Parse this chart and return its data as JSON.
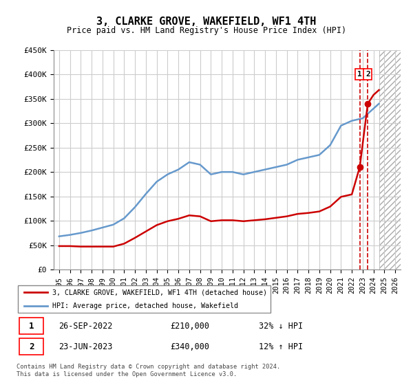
{
  "title": "3, CLARKE GROVE, WAKEFIELD, WF1 4TH",
  "subtitle": "Price paid vs. HM Land Registry's House Price Index (HPI)",
  "ytick_values": [
    0,
    50000,
    100000,
    150000,
    200000,
    250000,
    300000,
    350000,
    400000,
    450000
  ],
  "ylim": [
    0,
    450000
  ],
  "xlim_start": 1994.5,
  "xlim_end": 2026.5,
  "hatch_start": 2024.5,
  "red_line_color": "#cc0000",
  "blue_line_color": "#6699cc",
  "grid_color": "#cccccc",
  "background_color": "#ffffff",
  "transaction1": {
    "label": "1",
    "date": "26-SEP-2022",
    "price": 210000,
    "x": 2022.73,
    "pct": "32% ↓ HPI",
    "color": "#cc0000"
  },
  "transaction2": {
    "label": "2",
    "date": "23-JUN-2023",
    "price": 340000,
    "x": 2023.47,
    "pct": "12% ↑ HPI",
    "color": "#cc0000"
  },
  "legend_entry1": "3, CLARKE GROVE, WAKEFIELD, WF1 4TH (detached house)",
  "legend_entry2": "HPI: Average price, detached house, Wakefield",
  "footer": "Contains HM Land Registry data © Crown copyright and database right 2024.\nThis data is licensed under the Open Government Licence v3.0.",
  "hpi_years": [
    1995,
    1996,
    1997,
    1998,
    1999,
    2000,
    2001,
    2002,
    2003,
    2004,
    2005,
    2006,
    2007,
    2008,
    2009,
    2010,
    2011,
    2012,
    2013,
    2014,
    2015,
    2016,
    2017,
    2018,
    2019,
    2020,
    2021,
    2022,
    2023,
    2024,
    2024.5
  ],
  "hpi_values": [
    68000,
    71000,
    75000,
    80000,
    86000,
    92000,
    105000,
    128000,
    155000,
    180000,
    195000,
    205000,
    220000,
    215000,
    195000,
    200000,
    200000,
    195000,
    200000,
    205000,
    210000,
    215000,
    225000,
    230000,
    235000,
    255000,
    295000,
    305000,
    310000,
    330000,
    340000
  ],
  "property_years": [
    1995,
    1996,
    1997,
    1998,
    1999,
    2000,
    2001,
    2002,
    2003,
    2004,
    2005,
    2006,
    2007,
    2008,
    2009,
    2010,
    2011,
    2012,
    2013,
    2014,
    2015,
    2016,
    2017,
    2018,
    2019,
    2020,
    2021,
    2022,
    2022.73,
    2023.47,
    2024,
    2024.5
  ],
  "property_values": [
    48000,
    48000,
    47000,
    47000,
    47000,
    47000,
    53000,
    65000,
    78000,
    91000,
    99000,
    104000,
    111000,
    109000,
    99000,
    101000,
    101000,
    99000,
    101000,
    103000,
    106000,
    109000,
    114000,
    116000,
    119000,
    129000,
    149000,
    154000,
    210000,
    340000,
    358000,
    368000
  ],
  "xtick_years": [
    1995,
    1996,
    1997,
    1998,
    1999,
    2000,
    2001,
    2002,
    2003,
    2004,
    2005,
    2006,
    2007,
    2008,
    2009,
    2010,
    2011,
    2012,
    2013,
    2014,
    2015,
    2016,
    2017,
    2018,
    2019,
    2020,
    2021,
    2022,
    2023,
    2024,
    2025,
    2026
  ]
}
